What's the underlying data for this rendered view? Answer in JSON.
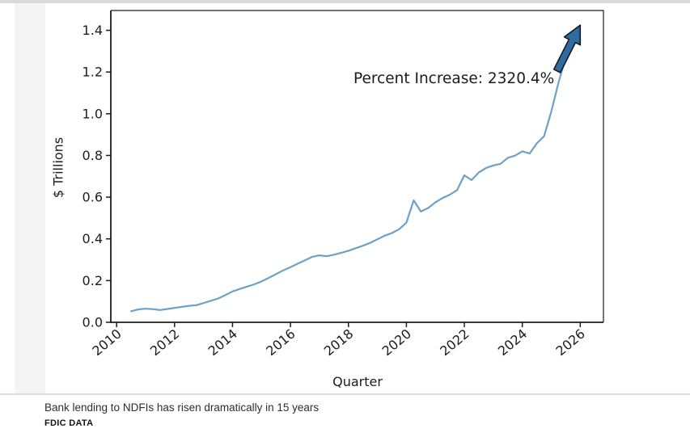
{
  "caption": {
    "title": "Bank lending to NDFIs has risen dramatically in 15 years",
    "source": "FDIC DATA"
  },
  "chart_data": {
    "type": "line",
    "title": "",
    "xlabel": "Quarter",
    "ylabel": "$ Trillions",
    "annotation": "Percent Increase: 2320.4%",
    "series_name": "Bank lending to NDFIs",
    "units": "$ Trillions",
    "grid": false,
    "legend_position": "none",
    "xlim": [
      2009.8,
      2026.8
    ],
    "ylim": [
      0,
      1.495
    ],
    "xticks": [
      "2010",
      "2012",
      "2014",
      "2016",
      "2018",
      "2020",
      "2022",
      "2024",
      "2026"
    ],
    "yticks": [
      "0.0",
      "0.2",
      "0.4",
      "0.6",
      "0.8",
      "1.0",
      "1.2",
      "1.4"
    ],
    "quarters": [
      "2010 Q3",
      "2010 Q4",
      "2011 Q1",
      "2011 Q2",
      "2011 Q3",
      "2011 Q4",
      "2012 Q1",
      "2012 Q2",
      "2012 Q3",
      "2012 Q4",
      "2013 Q1",
      "2013 Q2",
      "2013 Q3",
      "2013 Q4",
      "2014 Q1",
      "2014 Q2",
      "2014 Q3",
      "2014 Q4",
      "2015 Q1",
      "2015 Q2",
      "2015 Q3",
      "2015 Q4",
      "2016 Q1",
      "2016 Q2",
      "2016 Q3",
      "2016 Q4",
      "2017 Q1",
      "2017 Q2",
      "2017 Q3",
      "2017 Q4",
      "2018 Q1",
      "2018 Q2",
      "2018 Q3",
      "2018 Q4",
      "2019 Q1",
      "2019 Q2",
      "2019 Q3",
      "2019 Q4",
      "2020 Q1",
      "2020 Q2",
      "2020 Q3",
      "2020 Q4",
      "2021 Q1",
      "2021 Q2",
      "2021 Q3",
      "2021 Q4",
      "2022 Q1",
      "2022 Q2",
      "2022 Q3",
      "2022 Q4",
      "2023 Q1",
      "2023 Q2",
      "2023 Q3",
      "2023 Q4",
      "2024 Q1",
      "2024 Q2",
      "2024 Q3",
      "2024 Q4",
      "2025 Q1",
      "2025 Q2",
      "2025 Q3"
    ],
    "x": [
      2010.5,
      2010.75,
      2011.0,
      2011.25,
      2011.5,
      2011.75,
      2012.0,
      2012.25,
      2012.5,
      2012.75,
      2013.0,
      2013.25,
      2013.5,
      2013.75,
      2014.0,
      2014.25,
      2014.5,
      2014.75,
      2015.0,
      2015.25,
      2015.5,
      2015.75,
      2016.0,
      2016.25,
      2016.5,
      2016.75,
      2017.0,
      2017.25,
      2017.5,
      2017.75,
      2018.0,
      2018.25,
      2018.5,
      2018.75,
      2019.0,
      2019.25,
      2019.5,
      2019.75,
      2020.0,
      2020.25,
      2020.5,
      2020.75,
      2021.0,
      2021.25,
      2021.5,
      2021.75,
      2022.0,
      2022.25,
      2022.5,
      2022.75,
      2023.0,
      2023.25,
      2023.5,
      2023.75,
      2024.0,
      2024.25,
      2024.5,
      2024.75,
      2025.0,
      2025.25,
      2025.5
    ],
    "values": [
      0.053,
      0.062,
      0.065,
      0.063,
      0.059,
      0.064,
      0.069,
      0.074,
      0.079,
      0.082,
      0.092,
      0.103,
      0.114,
      0.13,
      0.148,
      0.16,
      0.171,
      0.182,
      0.196,
      0.213,
      0.231,
      0.249,
      0.264,
      0.281,
      0.297,
      0.314,
      0.321,
      0.317,
      0.324,
      0.333,
      0.343,
      0.355,
      0.367,
      0.381,
      0.398,
      0.415,
      0.428,
      0.446,
      0.478,
      0.585,
      0.531,
      0.548,
      0.575,
      0.596,
      0.612,
      0.634,
      0.705,
      0.682,
      0.719,
      0.74,
      0.752,
      0.76,
      0.789,
      0.799,
      0.82,
      0.809,
      0.858,
      0.892,
      1.01,
      1.15,
      1.271
    ],
    "arrow": {
      "from": [
        2025.2,
        1.205
      ],
      "to": [
        2026.0,
        1.425
      ]
    },
    "colors": {
      "line": "#6fa0c7",
      "arrow": "#2f6ba0",
      "arrow_outline": "#16191c",
      "spine": "#1c1c1c",
      "text": "#1c1c1c"
    }
  }
}
